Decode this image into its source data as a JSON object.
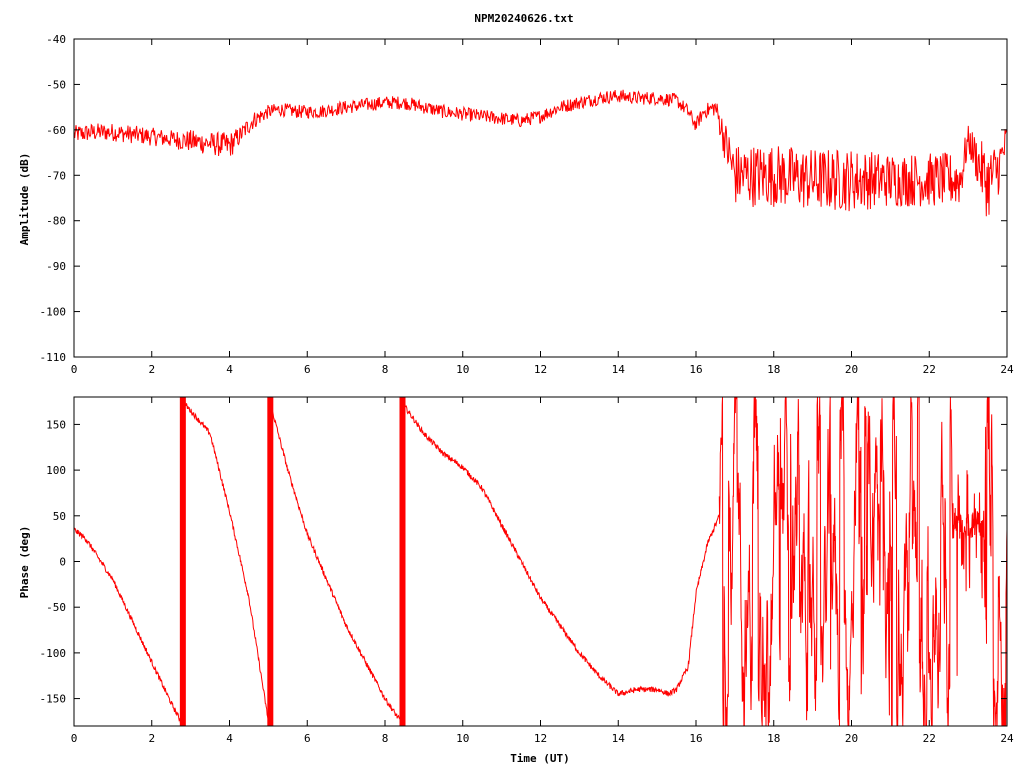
{
  "chart_data": [
    {
      "type": "line",
      "title": "NPM20240626.txt",
      "xlabel": "",
      "ylabel": "Amplitude (dB)",
      "xlim": [
        0,
        24
      ],
      "ylim": [
        -110,
        -40
      ],
      "xticks": [
        0,
        2,
        4,
        6,
        8,
        10,
        12,
        14,
        16,
        18,
        20,
        22,
        24
      ],
      "yticks": [
        -40,
        -50,
        -60,
        -70,
        -80,
        -90,
        -100,
        -110
      ],
      "grid": false,
      "color": "#ff0000",
      "series": [
        {
          "x": [
            0,
            0.5,
            1,
            1.5,
            2,
            2.5,
            3,
            3.5,
            4,
            4.3,
            4.6,
            5,
            5.3,
            5.8,
            6.3,
            7,
            8,
            8.5,
            9,
            9.5,
            10,
            10.5,
            11,
            11.5,
            12,
            12.5,
            13,
            13.5,
            14,
            14.5,
            15,
            15.5,
            15.8,
            16,
            16.2,
            16.5,
            17,
            18,
            19,
            20,
            21,
            22,
            22.8,
            23.0,
            23.5,
            23.8,
            24
          ],
          "y": [
            -61,
            -60.5,
            -60.5,
            -61,
            -61.5,
            -62,
            -62.5,
            -63,
            -63.5,
            -61,
            -58,
            -56,
            -55.5,
            -56,
            -56,
            -55,
            -54,
            -54,
            -55,
            -56,
            -56.5,
            -57,
            -57.5,
            -58,
            -57,
            -55,
            -54,
            -53,
            -52.5,
            -53,
            -53,
            -53.5,
            -56,
            -59,
            -56,
            -55,
            -70,
            -70,
            -71,
            -71,
            -71,
            -71,
            -71,
            -62,
            -72,
            -68,
            -62
          ],
          "band": [
            2,
            2,
            2,
            2,
            2,
            2,
            2.5,
            2.5,
            3,
            2,
            2,
            1.5,
            1.5,
            1.5,
            1.5,
            1.5,
            1.5,
            1.5,
            1.5,
            1.5,
            1.5,
            1.5,
            1.5,
            1.5,
            1.5,
            1.5,
            1.5,
            1.5,
            1.5,
            1.5,
            1.5,
            1.5,
            1.5,
            1.5,
            1.5,
            2,
            7,
            7,
            7,
            7,
            6,
            6,
            6,
            3,
            8,
            6,
            4
          ]
        }
      ]
    },
    {
      "type": "line",
      "title": "",
      "xlabel": "Time (UT)",
      "ylabel": "Phase (deg)",
      "xlim": [
        0,
        24
      ],
      "ylim": [
        -180,
        180
      ],
      "xticks": [
        0,
        2,
        4,
        6,
        8,
        10,
        12,
        14,
        16,
        18,
        20,
        22,
        24
      ],
      "yticks": [
        150,
        100,
        50,
        0,
        -50,
        -100,
        -150
      ],
      "grid": false,
      "color": "#ff0000",
      "series": [
        {
          "x": [
            0,
            0.3,
            1,
            1.5,
            2,
            2.5,
            2.75,
            2.8,
            2.9,
            3.5,
            4,
            4.5,
            5.0,
            5.05,
            5.1,
            5.5,
            6,
            7,
            8,
            8.4,
            8.45,
            8.5,
            9,
            9.5,
            10,
            10.5,
            11,
            11.5,
            12,
            12.5,
            13,
            13.5,
            14,
            14.5,
            15,
            15.3,
            15.5,
            15.8,
            16,
            16.3,
            16.6
          ],
          "y": [
            35,
            25,
            -20,
            -65,
            -110,
            -155,
            -175,
            175,
            170,
            140,
            55,
            -40,
            -175,
            175,
            165,
            100,
            30,
            -70,
            -150,
            -175,
            175,
            170,
            140,
            118,
            103,
            80,
            40,
            0,
            -40,
            -70,
            -100,
            -125,
            -145,
            -140,
            -140,
            -145,
            -140,
            -115,
            -35,
            20,
            50
          ]
        }
      ],
      "wraps": [
        2.8,
        5.05,
        8.45
      ],
      "noisy_from": 16.6,
      "noisy_to": 24
    }
  ]
}
